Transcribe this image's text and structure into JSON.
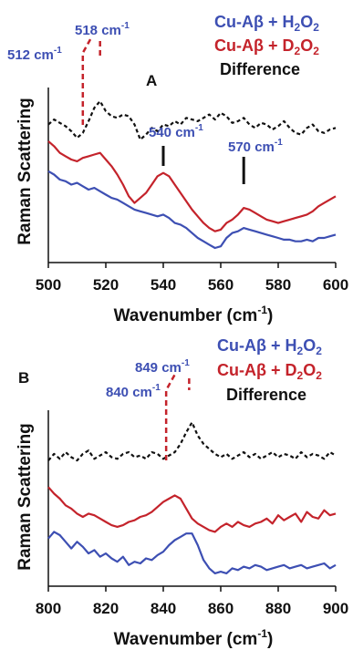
{
  "colors": {
    "blue": "#3d4fb3",
    "red": "#c4232b",
    "black": "#111111"
  },
  "chart_data": [
    {
      "type": "line",
      "panel_label": "A",
      "xlabel": "Wavenumber (cm",
      "xlabel_sup": "-1",
      "xlabel_end": ")",
      "ylabel": "Raman Scattering",
      "xlim": [
        500,
        600
      ],
      "ylim": [
        0,
        100
      ],
      "x_ticks": [
        500,
        520,
        540,
        560,
        580,
        600
      ],
      "legend": [
        {
          "text": "Cu-Aβ + H",
          "sub": "2",
          "text2": "O",
          "sub2": "2",
          "color": "blue"
        },
        {
          "text": "Cu-Aβ + D",
          "sub": "2",
          "text2": "O",
          "sub2": "2",
          "color": "red"
        },
        {
          "text": "Difference",
          "color": "black"
        }
      ],
      "series": [
        {
          "color": "blue",
          "dashed": false,
          "x": [
            500,
            502,
            504,
            506,
            508,
            510,
            512,
            514,
            516,
            518,
            520,
            522,
            524,
            526,
            528,
            530,
            532,
            534,
            536,
            538,
            540,
            542,
            544,
            546,
            548,
            550,
            552,
            554,
            556,
            558,
            560,
            562,
            564,
            566,
            568,
            570,
            572,
            574,
            576,
            578,
            580,
            582,
            584,
            586,
            588,
            590,
            592,
            594,
            596,
            598,
            600
          ],
          "y": [
            52,
            50,
            47,
            46,
            44,
            45,
            43,
            41,
            42,
            40,
            38,
            36,
            35,
            33,
            31,
            29,
            28,
            27,
            26,
            25,
            26,
            24,
            21,
            20,
            18,
            15,
            12,
            10,
            8,
            6,
            7,
            12,
            15,
            16,
            18,
            17,
            16,
            15,
            14,
            13,
            12,
            11,
            11,
            10,
            10,
            11,
            10,
            12,
            12,
            13,
            14
          ]
        },
        {
          "color": "red",
          "dashed": false,
          "x": [
            500,
            502,
            504,
            506,
            508,
            510,
            512,
            514,
            516,
            518,
            520,
            522,
            524,
            526,
            528,
            530,
            532,
            534,
            536,
            538,
            540,
            542,
            544,
            546,
            548,
            550,
            552,
            554,
            556,
            558,
            560,
            562,
            564,
            566,
            568,
            570,
            572,
            574,
            576,
            578,
            580,
            582,
            584,
            586,
            588,
            590,
            592,
            594,
            596,
            598,
            600
          ],
          "y": [
            70,
            67,
            63,
            61,
            59,
            58,
            60,
            61,
            62,
            63,
            59,
            55,
            50,
            44,
            37,
            33,
            36,
            39,
            44,
            49,
            51,
            49,
            44,
            39,
            34,
            29,
            25,
            21,
            18,
            16,
            17,
            21,
            23,
            26,
            30,
            29,
            27,
            25,
            23,
            22,
            21,
            22,
            23,
            24,
            25,
            26,
            28,
            31,
            33,
            35,
            37
          ]
        },
        {
          "color": "black",
          "dashed": true,
          "x": [
            500,
            502,
            504,
            506,
            508,
            510,
            512,
            514,
            516,
            518,
            520,
            522,
            524,
            526,
            528,
            530,
            532,
            534,
            536,
            538,
            540,
            542,
            544,
            546,
            548,
            550,
            552,
            554,
            556,
            558,
            560,
            562,
            564,
            566,
            568,
            570,
            572,
            574,
            576,
            578,
            580,
            582,
            584,
            586,
            588,
            590,
            592,
            594,
            596,
            598,
            600
          ],
          "y": [
            80,
            83,
            81,
            79,
            76,
            72,
            75,
            82,
            90,
            94,
            88,
            85,
            84,
            86,
            85,
            80,
            71,
            74,
            78,
            76,
            80,
            79,
            82,
            80,
            84,
            83,
            82,
            84,
            86,
            83,
            87,
            85,
            81,
            82,
            84,
            80,
            78,
            81,
            80,
            77,
            79,
            82,
            78,
            75,
            74,
            78,
            80,
            76,
            75,
            77,
            78
          ]
        }
      ],
      "annotations": [
        {
          "label": "512 cm",
          "sup": "-1",
          "x": 512,
          "color": "blue",
          "style": "dashed"
        },
        {
          "label": "518 cm",
          "sup": "-1",
          "x": 518,
          "color": "blue",
          "style": "dashed"
        },
        {
          "label": "540 cm",
          "sup": "-1",
          "x": 540,
          "color": "blue",
          "style": "solid"
        },
        {
          "label": "570 cm",
          "sup": "-1",
          "x": 568,
          "color": "blue",
          "style": "solid"
        }
      ]
    },
    {
      "type": "line",
      "panel_label": "B",
      "xlabel": "Wavenumber (cm",
      "xlabel_sup": "-1",
      "xlabel_end": ")",
      "ylabel": "Raman Scattering",
      "xlim": [
        800,
        900
      ],
      "ylim": [
        0,
        100
      ],
      "x_ticks": [
        800,
        820,
        840,
        860,
        880,
        900
      ],
      "legend": [
        {
          "text": "Cu-Aβ + H",
          "sub": "2",
          "text2": "O",
          "sub2": "2",
          "color": "blue"
        },
        {
          "text": "Cu-Aβ + D",
          "sub": "2",
          "text2": "O",
          "sub2": "2",
          "color": "red"
        },
        {
          "text": "Difference",
          "color": "black"
        }
      ],
      "series": [
        {
          "color": "blue",
          "dashed": false,
          "x": [
            800,
            802,
            804,
            806,
            808,
            810,
            812,
            814,
            816,
            818,
            820,
            822,
            824,
            826,
            828,
            830,
            832,
            834,
            836,
            838,
            840,
            842,
            844,
            846,
            848,
            850,
            852,
            854,
            856,
            858,
            860,
            862,
            864,
            866,
            868,
            870,
            872,
            874,
            876,
            878,
            880,
            882,
            884,
            886,
            888,
            890,
            892,
            894,
            896,
            898,
            900
          ],
          "y": [
            26,
            30,
            28,
            24,
            20,
            24,
            21,
            17,
            19,
            15,
            17,
            14,
            12,
            15,
            10,
            12,
            11,
            14,
            13,
            16,
            18,
            22,
            25,
            27,
            29,
            29,
            22,
            13,
            8,
            5,
            6,
            5,
            8,
            7,
            9,
            8,
            10,
            9,
            7,
            8,
            9,
            10,
            8,
            9,
            10,
            8,
            9,
            10,
            11,
            8,
            10
          ]
        },
        {
          "color": "red",
          "dashed": false,
          "x": [
            800,
            802,
            804,
            806,
            808,
            810,
            812,
            814,
            816,
            818,
            820,
            822,
            824,
            826,
            828,
            830,
            832,
            834,
            836,
            838,
            840,
            842,
            844,
            846,
            848,
            850,
            852,
            854,
            856,
            858,
            860,
            862,
            864,
            866,
            868,
            870,
            872,
            874,
            876,
            878,
            880,
            882,
            884,
            886,
            888,
            890,
            892,
            894,
            896,
            898,
            900
          ],
          "y": [
            57,
            53,
            50,
            46,
            44,
            41,
            39,
            41,
            40,
            38,
            36,
            34,
            33,
            34,
            36,
            37,
            39,
            40,
            42,
            45,
            48,
            50,
            52,
            50,
            44,
            38,
            35,
            33,
            31,
            30,
            33,
            35,
            33,
            36,
            34,
            33,
            35,
            36,
            38,
            35,
            40,
            37,
            39,
            41,
            36,
            42,
            39,
            38,
            43,
            40,
            41
          ]
        },
        {
          "color": "black",
          "dashed": true,
          "x": [
            800,
            802,
            804,
            806,
            808,
            810,
            812,
            814,
            816,
            818,
            820,
            822,
            824,
            826,
            828,
            830,
            832,
            834,
            836,
            838,
            840,
            842,
            844,
            846,
            848,
            850,
            852,
            854,
            856,
            858,
            860,
            862,
            864,
            866,
            868,
            870,
            872,
            874,
            876,
            878,
            880,
            882,
            884,
            886,
            888,
            890,
            892,
            894,
            896,
            898,
            900
          ],
          "y": [
            73,
            77,
            74,
            78,
            75,
            73,
            77,
            79,
            74,
            76,
            78,
            75,
            74,
            77,
            78,
            75,
            76,
            74,
            78,
            77,
            74,
            76,
            78,
            83,
            90,
            96,
            88,
            83,
            80,
            77,
            75,
            77,
            74,
            76,
            78,
            75,
            77,
            74,
            76,
            78,
            75,
            77,
            76,
            74,
            78,
            75,
            77,
            76,
            74,
            78,
            76
          ]
        }
      ],
      "annotations": [
        {
          "label": "840 cm",
          "sup": "-1",
          "x": 841,
          "color": "blue",
          "style": "dashed"
        },
        {
          "label": "849 cm",
          "sup": "-1",
          "x": 849,
          "color": "blue",
          "style": "dashed"
        }
      ]
    }
  ]
}
